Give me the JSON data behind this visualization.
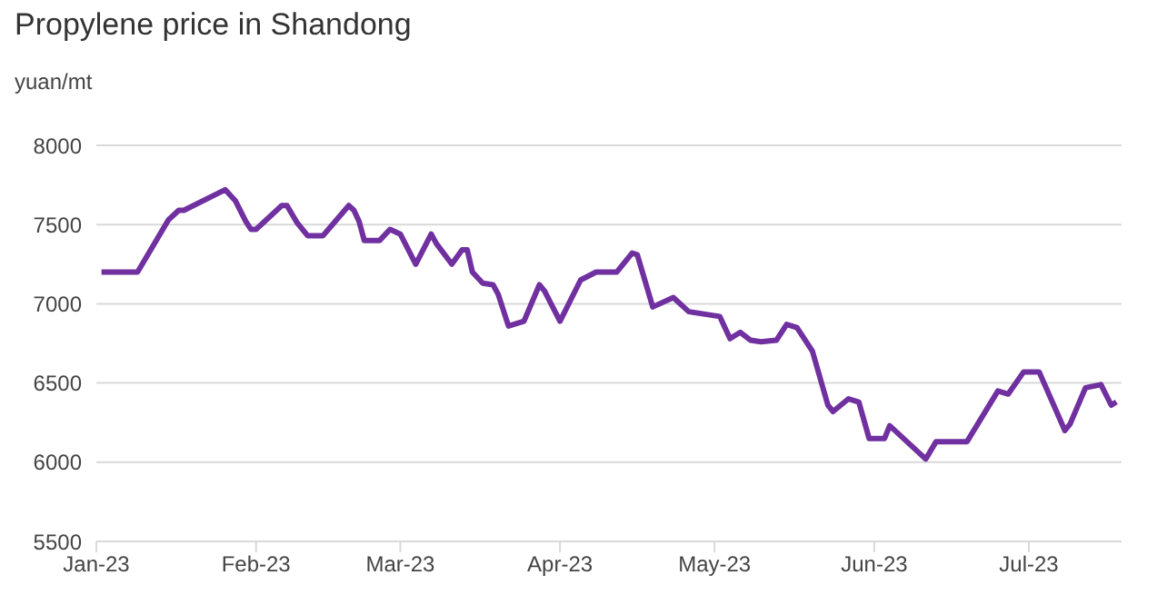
{
  "chart_data": {
    "type": "line",
    "title": "Propylene price in Shandong",
    "ylabel": "yuan/mt",
    "x": [
      "2023-01-02",
      "2023-01-09",
      "2023-01-15",
      "2023-01-17",
      "2023-01-18",
      "2023-01-26",
      "2023-01-28",
      "2023-01-30",
      "2023-01-31",
      "2023-02-01",
      "2023-02-06",
      "2023-02-07",
      "2023-02-09",
      "2023-02-11",
      "2023-02-14",
      "2023-02-19",
      "2023-02-20",
      "2023-02-21",
      "2023-02-22",
      "2023-02-25",
      "2023-02-27",
      "2023-03-01",
      "2023-03-04",
      "2023-03-07",
      "2023-03-08",
      "2023-03-11",
      "2023-03-13",
      "2023-03-14",
      "2023-03-15",
      "2023-03-17",
      "2023-03-19",
      "2023-03-20",
      "2023-03-22",
      "2023-03-25",
      "2023-03-28",
      "2023-03-29",
      "2023-04-01",
      "2023-04-05",
      "2023-04-08",
      "2023-04-12",
      "2023-04-15",
      "2023-04-16",
      "2023-04-19",
      "2023-04-23",
      "2023-04-26",
      "2023-05-02",
      "2023-05-04",
      "2023-05-06",
      "2023-05-08",
      "2023-05-10",
      "2023-05-13",
      "2023-05-15",
      "2023-05-17",
      "2023-05-20",
      "2023-05-23",
      "2023-05-24",
      "2023-05-27",
      "2023-05-29",
      "2023-05-31",
      "2023-06-03",
      "2023-06-04",
      "2023-06-05",
      "2023-06-11",
      "2023-06-13",
      "2023-06-19",
      "2023-06-25",
      "2023-06-27",
      "2023-06-30",
      "2023-07-03",
      "2023-07-08",
      "2023-07-09",
      "2023-07-12",
      "2023-07-15",
      "2023-07-17",
      "2023-07-18"
    ],
    "series": [
      {
        "color": "#7030a0",
        "values": [
          7200,
          7200,
          7530,
          7590,
          7590,
          7720,
          7650,
          7520,
          7470,
          7470,
          7620,
          7620,
          7510,
          7430,
          7430,
          7620,
          7590,
          7520,
          7400,
          7400,
          7470,
          7440,
          7250,
          7440,
          7380,
          7250,
          7340,
          7340,
          7200,
          7130,
          7120,
          7060,
          6860,
          6890,
          7120,
          7080,
          6890,
          7150,
          7200,
          7200,
          7320,
          7310,
          6980,
          7040,
          6950,
          6920,
          6780,
          6820,
          6770,
          6760,
          6770,
          6870,
          6850,
          6700,
          6360,
          6320,
          6400,
          6380,
          6150,
          6150,
          6230,
          6200,
          6020,
          6130,
          6130,
          6450,
          6430,
          6570,
          6570,
          6200,
          6240,
          6470,
          6490,
          6360,
          6380
        ]
      }
    ],
    "xlim": [
      "2023-01-01",
      "2023-07-19"
    ],
    "xticks": [
      {
        "value": "2023-01-01",
        "label": "Jan-23"
      },
      {
        "value": "2023-02-01",
        "label": "Feb-23"
      },
      {
        "value": "2023-03-01",
        "label": "Mar-23"
      },
      {
        "value": "2023-04-01",
        "label": "Apr-23"
      },
      {
        "value": "2023-05-01",
        "label": "May-23"
      },
      {
        "value": "2023-06-01",
        "label": "Jun-23"
      },
      {
        "value": "2023-07-01",
        "label": "Jul-23"
      }
    ],
    "ylim": [
      5500,
      8000
    ],
    "yticks": [
      5500,
      6000,
      6500,
      7000,
      7500,
      8000
    ],
    "grid": "y",
    "legend": false,
    "marker": "none",
    "line_style": "solid"
  }
}
